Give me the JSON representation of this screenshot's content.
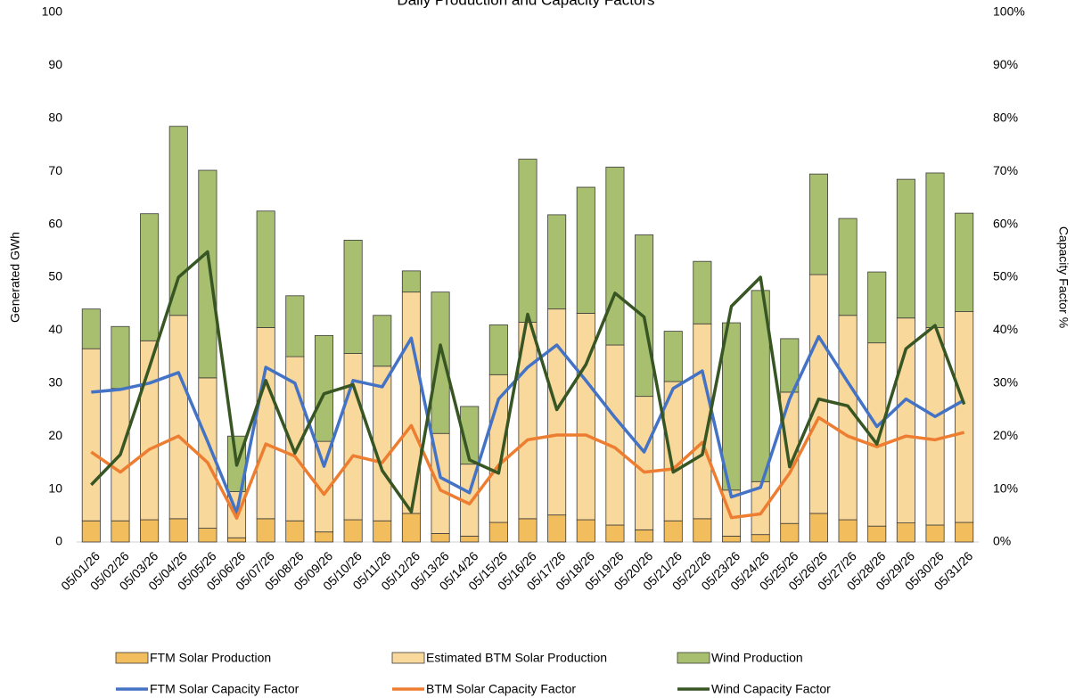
{
  "chart_data": {
    "type": "bar",
    "title": "Daily Production and Capacity Factors",
    "y_label": "Generated GWh",
    "y2_label": "Capacity Factor %",
    "legend": "bottom",
    "categories": [
      "05/01/26",
      "05/02/26",
      "05/03/26",
      "05/04/26",
      "05/05/26",
      "05/06/26",
      "05/07/26",
      "05/08/26",
      "05/09/26",
      "05/10/26",
      "05/11/26",
      "05/12/26",
      "05/13/26",
      "05/14/26",
      "05/15/26",
      "05/16/26",
      "05/17/26",
      "05/18/26",
      "05/19/26",
      "05/20/26",
      "05/21/26",
      "05/22/26",
      "05/23/26",
      "05/24/26",
      "05/25/26",
      "05/26/26",
      "05/27/26",
      "05/28/26",
      "05/29/26",
      "05/30/26",
      "05/31/26"
    ],
    "ylim": [
      0,
      100
    ],
    "yticks": [
      0,
      10,
      20,
      30,
      40,
      50,
      60,
      70,
      80,
      90,
      100
    ],
    "y2lim": [
      0,
      100
    ],
    "y2ticks": [
      {
        "value": 0,
        "label": "0%"
      },
      {
        "value": 10,
        "label": "10%"
      },
      {
        "value": 20,
        "label": "20%"
      },
      {
        "value": 30,
        "label": "30%"
      },
      {
        "value": 40,
        "label": "40%"
      },
      {
        "value": 50,
        "label": "50%"
      },
      {
        "value": 60,
        "label": "60%"
      },
      {
        "value": 70,
        "label": "70%"
      },
      {
        "value": 80,
        "label": "80%"
      },
      {
        "value": 90,
        "label": "90%"
      },
      {
        "value": 100,
        "label": "100%"
      }
    ],
    "series": [
      {
        "name": "FTM Solar Production",
        "type": "bar",
        "color": "#f2bd5c",
        "values": [
          4,
          4,
          4.2,
          4.4,
          2.6,
          0.8,
          4.4,
          4,
          1.9,
          4.2,
          4,
          5.4,
          1.6,
          1.1,
          3.7,
          4.4,
          5.1,
          4.2,
          3.2,
          2.3,
          4,
          4.4,
          1.1,
          1.4,
          3.5,
          5.4,
          4.2,
          3,
          3.6,
          3.2,
          3.7
        ]
      },
      {
        "name": "Estimated BTM Solar Production",
        "type": "bar",
        "color": "#f9d89c",
        "values": [
          32.5,
          25,
          33.8,
          38.4,
          28.4,
          8.7,
          36.1,
          31,
          17.1,
          31.4,
          29.2,
          41.8,
          18.9,
          13.6,
          27.9,
          37.1,
          38.9,
          39,
          34,
          25.2,
          26.3,
          36.8,
          8.7,
          10,
          24.8,
          45.1,
          38.6,
          34.6,
          38.7,
          37.3,
          39.8
        ]
      },
      {
        "name": "Wind Production",
        "type": "bar",
        "color": "#a9bf70",
        "values": [
          7.5,
          11.7,
          24,
          35.7,
          39.2,
          10.5,
          22,
          11.5,
          20,
          21.4,
          9.6,
          4,
          26.7,
          10.9,
          9.4,
          30.8,
          17.8,
          23.8,
          33.6,
          30.5,
          9.5,
          11.8,
          31.6,
          36.1,
          10.1,
          19,
          18.3,
          13.4,
          26.2,
          29.2,
          18.6
        ]
      },
      {
        "name": "FTM Solar Capacity Factor",
        "type": "line",
        "axis": "y2",
        "color": "#4472c4",
        "values": [
          28.3,
          28.8,
          30,
          32,
          19,
          5.5,
          33,
          30,
          14.3,
          30.5,
          29.3,
          38.5,
          12.2,
          9.3,
          27,
          33,
          37.2,
          30.5,
          23.5,
          17,
          29,
          32.3,
          8.5,
          10.3,
          27,
          38.8,
          30.2,
          21.8,
          27,
          23.7,
          26.8
        ]
      },
      {
        "name": "BTM Solar Capacity Factor",
        "type": "line",
        "axis": "y2",
        "color": "#ed7d31",
        "values": [
          17,
          13.2,
          17.5,
          20,
          15,
          4.5,
          18.5,
          16.2,
          9,
          16.3,
          15,
          22,
          9.8,
          7.2,
          14.5,
          19.3,
          20.2,
          20.2,
          17.8,
          13.2,
          13.8,
          18.8,
          4.6,
          5.3,
          13,
          23.5,
          20,
          18,
          20,
          19.3,
          20.7
        ]
      },
      {
        "name": "Wind Capacity Factor",
        "type": "line",
        "axis": "y2",
        "color": "#375623",
        "values": [
          10.8,
          16.5,
          33,
          50,
          54.8,
          14.5,
          30.5,
          16.8,
          28,
          29.7,
          13.5,
          5.7,
          37.2,
          15.5,
          13,
          43,
          25,
          33.5,
          47,
          42.5,
          13.2,
          16.5,
          44.5,
          50,
          14.2,
          27,
          25.7,
          18.5,
          36.5,
          40.9,
          26
        ]
      }
    ]
  }
}
